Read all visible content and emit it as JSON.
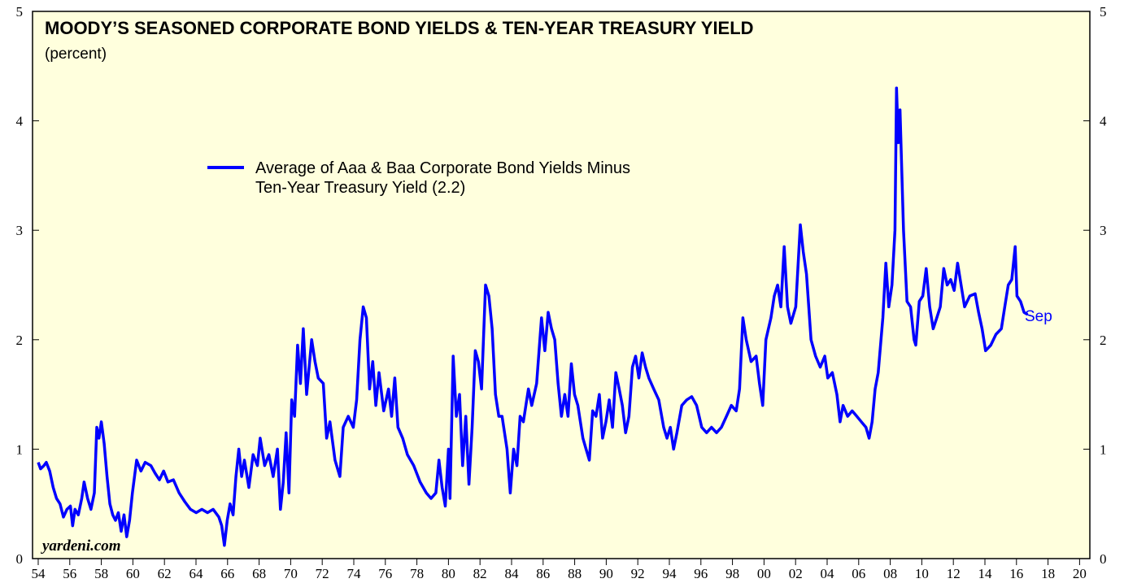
{
  "chart_data": {
    "type": "line",
    "title": "MOODY’S SEASONED CORPORATE BOND YIELDS & TEN-YEAR TREASURY YIELD",
    "subtitle": "(percent)",
    "annotation": "Sep",
    "source": "yardeni.com",
    "xlim": [
      1953.64,
      2020.65
    ],
    "ylim": [
      0,
      5
    ],
    "yticks": [
      0,
      1,
      2,
      3,
      4,
      5
    ],
    "xticks": [
      {
        "value": 1954,
        "label": "54"
      },
      {
        "value": 1956,
        "label": "56"
      },
      {
        "value": 1958,
        "label": "58"
      },
      {
        "value": 1960,
        "label": "60"
      },
      {
        "value": 1962,
        "label": "62"
      },
      {
        "value": 1964,
        "label": "64"
      },
      {
        "value": 1966,
        "label": "66"
      },
      {
        "value": 1968,
        "label": "68"
      },
      {
        "value": 1970,
        "label": "70"
      },
      {
        "value": 1972,
        "label": "72"
      },
      {
        "value": 1974,
        "label": "74"
      },
      {
        "value": 1976,
        "label": "76"
      },
      {
        "value": 1978,
        "label": "78"
      },
      {
        "value": 1980,
        "label": "80"
      },
      {
        "value": 1982,
        "label": "82"
      },
      {
        "value": 1984,
        "label": "84"
      },
      {
        "value": 1986,
        "label": "86"
      },
      {
        "value": 1988,
        "label": "88"
      },
      {
        "value": 1990,
        "label": "90"
      },
      {
        "value": 1992,
        "label": "92"
      },
      {
        "value": 1994,
        "label": "94"
      },
      {
        "value": 1996,
        "label": "96"
      },
      {
        "value": 1998,
        "label": "98"
      },
      {
        "value": 2000,
        "label": "00"
      },
      {
        "value": 2002,
        "label": "02"
      },
      {
        "value": 2004,
        "label": "04"
      },
      {
        "value": 2006,
        "label": "06"
      },
      {
        "value": 2008,
        "label": "08"
      },
      {
        "value": 2010,
        "label": "10"
      },
      {
        "value": 2012,
        "label": "12"
      },
      {
        "value": 2014,
        "label": "14"
      },
      {
        "value": 2016,
        "label": "16"
      },
      {
        "value": 2018,
        "label": "18"
      },
      {
        "value": 2020,
        "label": "20"
      }
    ],
    "background": "#ffffdd",
    "x": [
      1954.0,
      1954.15,
      1954.36,
      1954.51,
      1954.73,
      1954.95,
      1955.16,
      1955.38,
      1955.6,
      1955.82,
      1956.04,
      1956.18,
      1956.33,
      1956.54,
      1956.76,
      1956.91,
      1957.13,
      1957.34,
      1957.56,
      1957.71,
      1957.85,
      1958.0,
      1958.18,
      1958.36,
      1958.54,
      1958.72,
      1958.9,
      1959.08,
      1959.26,
      1959.44,
      1959.61,
      1959.79,
      1959.97,
      1960.24,
      1960.51,
      1960.78,
      1961.14,
      1961.41,
      1961.68,
      1961.95,
      1962.22,
      1962.57,
      1962.93,
      1963.29,
      1963.65,
      1964.01,
      1964.37,
      1964.73,
      1965.09,
      1965.45,
      1965.63,
      1965.8,
      1965.98,
      1966.16,
      1966.35,
      1966.53,
      1966.71,
      1966.89,
      1967.07,
      1967.35,
      1967.62,
      1967.89,
      1968.07,
      1968.35,
      1968.62,
      1968.89,
      1969.16,
      1969.35,
      1969.53,
      1969.71,
      1969.89,
      1970.07,
      1970.25,
      1970.44,
      1970.62,
      1970.8,
      1971.01,
      1971.33,
      1971.54,
      1971.75,
      1972.07,
      1972.28,
      1972.49,
      1972.81,
      1973.12,
      1973.33,
      1973.65,
      1973.97,
      1974.18,
      1974.39,
      1974.6,
      1974.8,
      1975.0,
      1975.2,
      1975.4,
      1975.6,
      1975.9,
      1976.2,
      1976.4,
      1976.6,
      1976.8,
      1977.1,
      1977.4,
      1977.8,
      1978.2,
      1978.6,
      1978.9,
      1979.2,
      1979.4,
      1979.6,
      1979.8,
      1980.0,
      1980.1,
      1980.3,
      1980.5,
      1980.7,
      1980.9,
      1981.1,
      1981.3,
      1981.5,
      1981.7,
      1981.9,
      1982.1,
      1982.35,
      1982.56,
      1982.77,
      1982.98,
      1983.19,
      1983.4,
      1983.71,
      1983.92,
      1984.13,
      1984.34,
      1984.54,
      1984.75,
      1985.07,
      1985.28,
      1985.59,
      1985.9,
      1986.11,
      1986.32,
      1986.53,
      1986.74,
      1986.95,
      1987.16,
      1987.37,
      1987.58,
      1987.79,
      1987.99,
      1988.2,
      1988.52,
      1988.72,
      1988.93,
      1989.14,
      1989.35,
      1989.56,
      1989.77,
      1989.98,
      1990.19,
      1990.4,
      1990.61,
      1990.82,
      1991.02,
      1991.23,
      1991.44,
      1991.66,
      1991.86,
      1992.07,
      1992.28,
      1992.49,
      1992.7,
      1993.01,
      1993.33,
      1993.64,
      1993.85,
      1994.06,
      1994.27,
      1994.48,
      1994.79,
      1995.1,
      1995.42,
      1995.73,
      1996.05,
      1996.36,
      1996.67,
      1996.99,
      1997.3,
      1997.62,
      1997.93,
      1998.24,
      1998.45,
      1998.66,
      1998.87,
      1999.18,
      1999.5,
      1999.71,
      1999.92,
      2000.12,
      2000.44,
      2000.65,
      2000.86,
      2001.07,
      2001.28,
      2001.49,
      2001.7,
      2002.01,
      2002.3,
      2002.49,
      2002.69,
      2002.98,
      2003.27,
      2003.56,
      2003.85,
      2004.04,
      2004.33,
      2004.62,
      2004.82,
      2005.01,
      2005.3,
      2005.59,
      2005.88,
      2006.17,
      2006.46,
      2006.66,
      2006.85,
      2007.04,
      2007.24,
      2007.53,
      2007.72,
      2007.91,
      2008.11,
      2008.3,
      2008.4,
      2008.51,
      2008.62,
      2008.84,
      2009.06,
      2009.29,
      2009.51,
      2009.62,
      2009.84,
      2010.06,
      2010.28,
      2010.5,
      2010.72,
      2010.95,
      2011.17,
      2011.39,
      2011.61,
      2011.83,
      2012.05,
      2012.27,
      2012.49,
      2012.71,
      2013.04,
      2013.38,
      2013.6,
      2013.82,
      2014.04,
      2014.37,
      2014.7,
      2015.04,
      2015.26,
      2015.48,
      2015.7,
      2015.92,
      2016.03,
      2016.26,
      2016.48,
      2016.7
    ],
    "series": [
      {
        "name": "Average of Aaa & Baa Corporate Bond Yields Minus Ten-Year Treasury Yield (2.2)",
        "color": "#0000ff",
        "values": [
          0.88,
          0.82,
          0.85,
          0.88,
          0.8,
          0.65,
          0.55,
          0.5,
          0.38,
          0.45,
          0.48,
          0.3,
          0.45,
          0.4,
          0.55,
          0.7,
          0.55,
          0.45,
          0.6,
          1.2,
          1.1,
          1.25,
          1.05,
          0.75,
          0.5,
          0.4,
          0.35,
          0.42,
          0.25,
          0.4,
          0.2,
          0.35,
          0.6,
          0.9,
          0.8,
          0.88,
          0.85,
          0.78,
          0.72,
          0.8,
          0.7,
          0.72,
          0.6,
          0.52,
          0.45,
          0.42,
          0.45,
          0.42,
          0.45,
          0.38,
          0.3,
          0.12,
          0.35,
          0.5,
          0.4,
          0.75,
          1.0,
          0.75,
          0.9,
          0.65,
          0.95,
          0.85,
          1.1,
          0.85,
          0.95,
          0.75,
          1.0,
          0.45,
          0.7,
          1.15,
          0.6,
          1.45,
          1.3,
          1.95,
          1.6,
          2.1,
          1.5,
          2.0,
          1.8,
          1.65,
          1.6,
          1.1,
          1.25,
          0.9,
          0.75,
          1.2,
          1.3,
          1.2,
          1.45,
          2.0,
          2.3,
          2.2,
          1.55,
          1.8,
          1.4,
          1.7,
          1.35,
          1.55,
          1.3,
          1.65,
          1.2,
          1.1,
          0.95,
          0.85,
          0.7,
          0.6,
          0.55,
          0.6,
          0.9,
          0.65,
          0.48,
          1.0,
          0.55,
          1.85,
          1.3,
          1.5,
          0.85,
          1.3,
          0.68,
          1.2,
          1.9,
          1.8,
          1.55,
          2.5,
          2.4,
          2.1,
          1.5,
          1.3,
          1.3,
          1.0,
          0.6,
          1.0,
          0.85,
          1.3,
          1.25,
          1.55,
          1.4,
          1.6,
          2.2,
          1.9,
          2.25,
          2.1,
          2.0,
          1.6,
          1.3,
          1.5,
          1.3,
          1.78,
          1.5,
          1.4,
          1.1,
          1.0,
          0.9,
          1.35,
          1.3,
          1.5,
          1.1,
          1.25,
          1.45,
          1.2,
          1.7,
          1.55,
          1.4,
          1.15,
          1.3,
          1.75,
          1.85,
          1.65,
          1.88,
          1.75,
          1.65,
          1.55,
          1.45,
          1.2,
          1.1,
          1.2,
          1.0,
          1.15,
          1.4,
          1.45,
          1.48,
          1.4,
          1.2,
          1.15,
          1.2,
          1.15,
          1.2,
          1.3,
          1.4,
          1.35,
          1.55,
          2.2,
          2.0,
          1.8,
          1.85,
          1.6,
          1.4,
          2.0,
          2.2,
          2.4,
          2.5,
          2.3,
          2.85,
          2.3,
          2.15,
          2.3,
          3.05,
          2.8,
          2.6,
          2.0,
          1.85,
          1.75,
          1.85,
          1.65,
          1.7,
          1.5,
          1.25,
          1.4,
          1.3,
          1.35,
          1.3,
          1.25,
          1.2,
          1.1,
          1.25,
          1.55,
          1.7,
          2.2,
          2.7,
          2.3,
          2.5,
          3.0,
          4.3,
          3.8,
          4.1,
          3.0,
          2.35,
          2.3,
          2.0,
          1.95,
          2.35,
          2.4,
          2.65,
          2.3,
          2.1,
          2.2,
          2.3,
          2.65,
          2.5,
          2.55,
          2.45,
          2.7,
          2.5,
          2.3,
          2.4,
          2.42,
          2.25,
          2.1,
          1.9,
          1.95,
          2.05,
          2.1,
          2.3,
          2.5,
          2.55,
          2.85,
          2.4,
          2.35,
          2.25,
          2.23
        ]
      }
    ]
  }
}
